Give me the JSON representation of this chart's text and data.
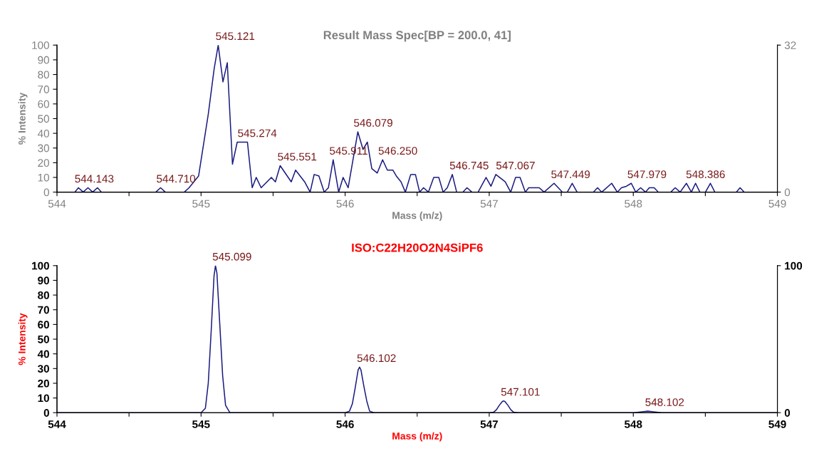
{
  "chart_data": [
    {
      "type": "line",
      "title": "Result Mass Spec[BP = 200.0, 41]",
      "xlabel": "Mass (m/z)",
      "ylabel": "% Intensity",
      "series": [
        {
          "color": "#1a1a80",
          "x": [
            544.124,
            544.149,
            544.182,
            544.215,
            544.248,
            544.281,
            544.309,
            544.686,
            544.719,
            544.752,
            544.884,
            544.917,
            544.983,
            545.05,
            545.091,
            545.119,
            545.152,
            545.182,
            545.218,
            545.251,
            545.322,
            545.355,
            545.383,
            545.417,
            545.488,
            545.516,
            545.549,
            545.626,
            545.656,
            545.719,
            545.757,
            545.785,
            545.818,
            545.855,
            545.884,
            545.917,
            545.955,
            545.986,
            546.021,
            546.088,
            546.124,
            546.154,
            546.185,
            546.223,
            546.26,
            546.293,
            546.331,
            546.355,
            546.388,
            546.418,
            546.455,
            546.488,
            546.517,
            546.544,
            546.578,
            546.615,
            546.65,
            546.68,
            546.709,
            546.744,
            546.774,
            546.817,
            546.846,
            546.88,
            546.923,
            546.978,
            547.012,
            547.046,
            547.111,
            547.149,
            547.183,
            547.214,
            547.251,
            547.274,
            547.347,
            547.381,
            547.45,
            547.508,
            547.542,
            547.576,
            547.61,
            547.723,
            547.752,
            547.781,
            547.85,
            547.889,
            547.918,
            547.952,
            547.986,
            548.017,
            548.051,
            548.085,
            548.111,
            548.145,
            548.174,
            548.26,
            548.291,
            548.325,
            548.369,
            548.403,
            548.432,
            548.462,
            548.501,
            548.535,
            548.566,
            548.715,
            548.741,
            548.77
          ],
          "values": [
            0,
            3,
            0,
            3,
            0,
            3,
            0,
            0,
            3,
            0,
            0,
            3,
            11,
            53,
            84,
            100,
            75,
            88,
            19,
            34,
            34,
            3,
            10,
            3,
            10,
            7,
            18,
            7,
            15,
            7,
            0,
            12,
            11,
            0,
            3,
            22,
            0,
            10,
            3,
            41,
            29,
            34,
            16,
            13,
            22,
            15,
            15,
            11,
            7,
            0,
            12,
            12,
            0,
            3,
            0,
            10,
            10,
            0,
            3,
            12,
            0,
            0,
            3,
            0,
            0,
            10,
            4,
            12,
            7,
            0,
            10,
            10,
            0,
            3,
            3,
            0,
            6,
            0,
            0,
            6,
            0,
            0,
            3,
            0,
            6,
            0,
            3,
            4,
            6,
            0,
            3,
            0,
            3,
            3,
            0,
            0,
            3,
            0,
            6,
            0,
            6,
            0,
            0,
            6,
            0,
            0,
            3,
            0
          ]
        }
      ],
      "xlim": [
        544,
        549
      ],
      "xticks": [
        544,
        {
          "value": 544.5,
          "label": null
        },
        545,
        {
          "value": 545.5,
          "label": null
        },
        546,
        {
          "value": 546.5,
          "label": null
        },
        547,
        {
          "value": 547.5,
          "label": null
        },
        548,
        {
          "value": 548.5,
          "label": null
        },
        549
      ],
      "ylim": [
        0,
        100
      ],
      "yticks": [
        0,
        10,
        20,
        30,
        40,
        50,
        60,
        70,
        80,
        90,
        100
      ],
      "y2lim": [
        0,
        32
      ],
      "y2ticks": [
        0,
        32
      ],
      "annotations": [
        {
          "text": "544.143",
          "x": 544.143,
          "y": 3
        },
        {
          "text": "544.710",
          "x": 544.71,
          "y": 3
        },
        {
          "text": "545.121",
          "x": 545.121,
          "y": 100
        },
        {
          "text": "545.274",
          "x": 545.274,
          "y": 34
        },
        {
          "text": "545.551",
          "x": 545.551,
          "y": 18
        },
        {
          "text": "545.911",
          "x": 545.911,
          "y": 22
        },
        {
          "text": "546.079",
          "x": 546.079,
          "y": 41
        },
        {
          "text": "546.250",
          "x": 546.25,
          "y": 22
        },
        {
          "text": "546.745",
          "x": 546.745,
          "y": 12
        },
        {
          "text": "547.067",
          "x": 547.067,
          "y": 12
        },
        {
          "text": "547.449",
          "x": 547.449,
          "y": 6
        },
        {
          "text": "547.979",
          "x": 547.979,
          "y": 6
        },
        {
          "text": "548.386",
          "x": 548.386,
          "y": 6
        }
      ],
      "grid": false,
      "legend": false,
      "marker": "none",
      "line_style": "solid"
    },
    {
      "type": "line",
      "title": "ISO:C22H20O2N4SiPF6",
      "xlabel": "Mass (m/z)",
      "ylabel": "% Intensity",
      "series": [
        {
          "color": "#1a1a80",
          "x": [
            544.0,
            545.0,
            545.03,
            545.05,
            545.07,
            545.09,
            545.1,
            545.11,
            545.13,
            545.15,
            545.17,
            545.2,
            546.0,
            546.03,
            546.05,
            546.07,
            546.09,
            546.1,
            546.11,
            546.13,
            546.15,
            546.17,
            546.2,
            547.0,
            547.03,
            547.05,
            547.07,
            547.09,
            547.1,
            547.11,
            547.13,
            547.15,
            547.17,
            547.2,
            548.0,
            548.05,
            548.1,
            548.15,
            548.2,
            549.0
          ],
          "values": [
            0,
            0,
            3,
            20,
            55,
            93,
            100,
            95,
            60,
            25,
            5,
            0,
            0,
            1,
            6,
            17,
            29,
            31,
            29,
            18,
            8,
            1,
            0,
            0,
            0.3,
            2,
            5,
            7.5,
            8,
            7.5,
            5,
            2,
            0.3,
            0,
            0,
            0.5,
            1,
            0.5,
            0,
            0
          ]
        }
      ],
      "xlim": [
        544,
        549
      ],
      "xticks": [
        544,
        {
          "value": 544.5,
          "label": null
        },
        545,
        {
          "value": 545.5,
          "label": null
        },
        546,
        {
          "value": 546.5,
          "label": null
        },
        547,
        {
          "value": 547.5,
          "label": null
        },
        548,
        {
          "value": 548.5,
          "label": null
        },
        549
      ],
      "ylim": [
        0,
        100
      ],
      "yticks": [
        0,
        10,
        20,
        30,
        40,
        50,
        60,
        70,
        80,
        90,
        100
      ],
      "y2lim": [
        0,
        100
      ],
      "y2ticks": [
        0,
        100
      ],
      "annotations": [
        {
          "text": "545.099",
          "x": 545.099,
          "y": 100
        },
        {
          "text": "546.102",
          "x": 546.102,
          "y": 31
        },
        {
          "text": "547.101",
          "x": 547.101,
          "y": 8
        },
        {
          "text": "548.102",
          "x": 548.102,
          "y": 1
        }
      ],
      "grid": false,
      "legend": false,
      "marker": "none",
      "line_style": "solid"
    }
  ]
}
